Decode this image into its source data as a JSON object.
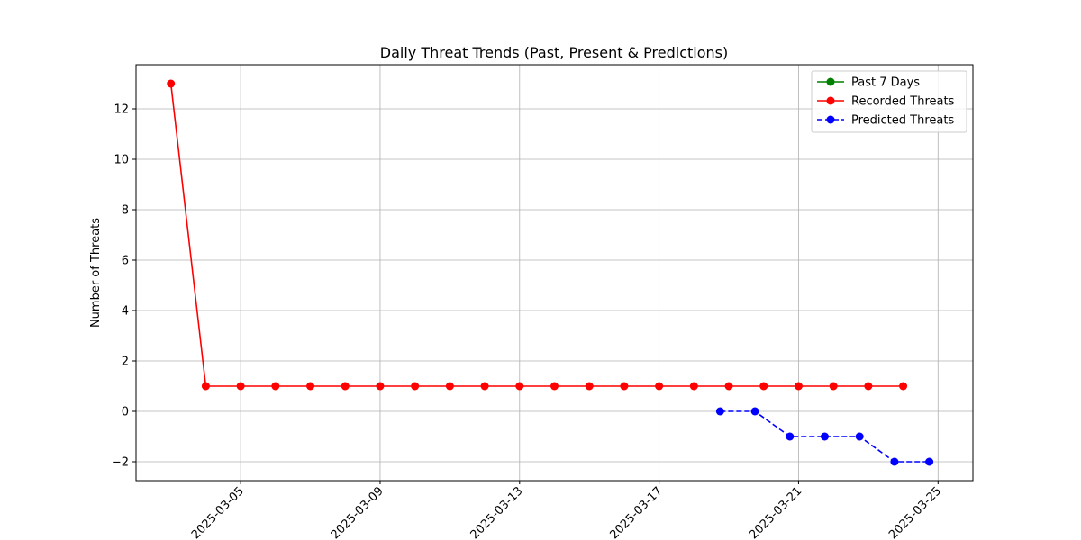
{
  "chart_data": {
    "type": "line",
    "title": "Daily Threat Trends (Past, Present & Predictions)",
    "xlabel": "",
    "ylabel": "Number of Threats",
    "x_axis_type": "date",
    "xlim": [
      "2025-03-02",
      "2025-03-26"
    ],
    "ylim": [
      -2.75,
      13.75
    ],
    "x_ticks": [
      "2025-03-05",
      "2025-03-09",
      "2025-03-13",
      "2025-03-17",
      "2025-03-21",
      "2025-03-25"
    ],
    "y_ticks": [
      -2,
      0,
      2,
      4,
      6,
      8,
      10,
      12
    ],
    "grid": true,
    "legend_position": "top-right",
    "series": [
      {
        "name": "Past 7 Days",
        "color": "#008000",
        "style": "solid",
        "marker": "circle",
        "x": [],
        "y": []
      },
      {
        "name": "Recorded Threats",
        "color": "#ff0000",
        "style": "solid",
        "marker": "circle",
        "x": [
          "2025-03-03",
          "2025-03-04",
          "2025-03-05",
          "2025-03-06",
          "2025-03-07",
          "2025-03-08",
          "2025-03-09",
          "2025-03-10",
          "2025-03-11",
          "2025-03-12",
          "2025-03-13",
          "2025-03-14",
          "2025-03-15",
          "2025-03-16",
          "2025-03-17",
          "2025-03-18",
          "2025-03-19",
          "2025-03-20",
          "2025-03-21",
          "2025-03-22",
          "2025-03-23",
          "2025-03-24"
        ],
        "y": [
          13,
          1,
          1,
          1,
          1,
          1,
          1,
          1,
          1,
          1,
          1,
          1,
          1,
          1,
          1,
          1,
          1,
          1,
          1,
          1,
          1,
          1
        ]
      },
      {
        "name": "Predicted Threats",
        "color": "#0000ff",
        "style": "dashed",
        "marker": "circle",
        "x": [
          "2025-03-18T18:00",
          "2025-03-19T18:00",
          "2025-03-20T18:00",
          "2025-03-21T18:00",
          "2025-03-22T18:00",
          "2025-03-23T18:00",
          "2025-03-24T18:00"
        ],
        "y": [
          0,
          0,
          -1,
          -1,
          -1,
          -2,
          -2
        ]
      }
    ]
  }
}
